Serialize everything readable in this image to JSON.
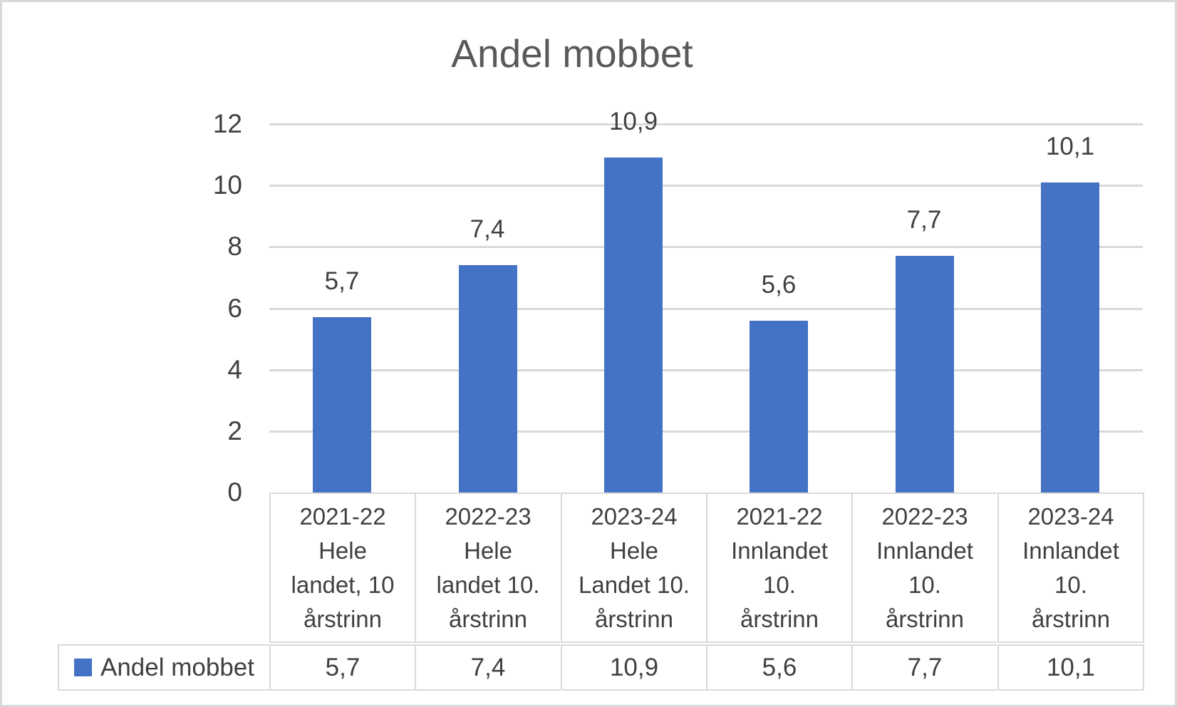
{
  "chart_data": {
    "type": "bar",
    "title": "Andel mobbet",
    "categories": [
      "2021-22\nHele\nlandet, 10\nårstrinn",
      "2022-23\nHele\nlandet 10.\nårstrinn",
      "2023-24\nHele\nLandet 10.\nårstrinn",
      "2021-22\nInnlandet\n10.\nårstrinn",
      "2022-23\nInnlandet\n10.\nårstrinn",
      "2023-24\nInnlandet\n10.\nårstrinn"
    ],
    "series": [
      {
        "name": "Andel mobbet",
        "values": [
          5.7,
          7.4,
          10.9,
          5.6,
          7.7,
          10.1
        ]
      }
    ],
    "value_labels": [
      "5,7",
      "7,4",
      "10,9",
      "5,6",
      "7,7",
      "10,1"
    ],
    "xlabel": "",
    "ylabel": "",
    "ylim": [
      0,
      12
    ],
    "y_ticks": [
      0,
      2,
      4,
      6,
      8,
      10,
      12
    ],
    "grid": true,
    "legend_position": "data-table-row-header",
    "data_table": {
      "row_header": "Andel mobbet",
      "values": [
        "5,7",
        "7,4",
        "10,9",
        "5,6",
        "7,7",
        "10,1"
      ]
    }
  },
  "colors": {
    "bar": "#4472C4",
    "title_text": "#595959",
    "label_text": "#404040",
    "gridline": "#D9D9D9",
    "table_border": "#D9D9D9",
    "frame_border": "#D9D9D9",
    "background": "#FFFFFF"
  }
}
